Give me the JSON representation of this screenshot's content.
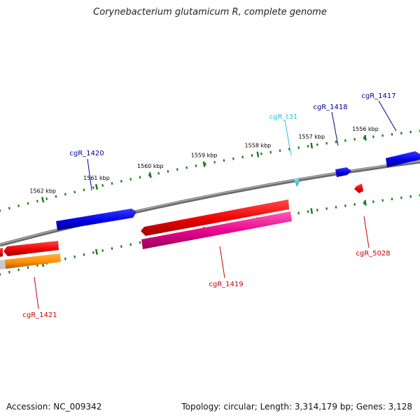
{
  "title": "Corynebacterium glutamicum R, complete genome",
  "footer": {
    "accession": "Accession: NC_009342",
    "summary": "Topology: circular; Length: 3,314,179 bp; Genes: 3,128"
  },
  "scale": {
    "ticks_kbp": [
      {
        "label": "1556 kbp"
      },
      {
        "label": "1557 kbp"
      },
      {
        "label": "1558 kbp"
      },
      {
        "label": "1559 kbp"
      },
      {
        "label": "1560 kbp"
      },
      {
        "label": "1561 kbp"
      },
      {
        "label": "1562 kbp"
      }
    ]
  },
  "features": [
    {
      "name": "cgR_1417",
      "strand": "forward",
      "type": "CDS",
      "color": "#0000ee"
    },
    {
      "name": "cgR_1418",
      "strand": "forward",
      "type": "CDS",
      "color": "#0000ee"
    },
    {
      "name": "cgR_t31",
      "strand": "forward",
      "type": "tRNA",
      "color": "#33ccee"
    },
    {
      "name": "cgR_1420",
      "strand": "forward",
      "type": "CDS",
      "color": "#0000ee"
    },
    {
      "name": "cgR_1419",
      "strand": "reverse",
      "type": "CDS",
      "color": "#ee0000"
    },
    {
      "name": "cgR_5028",
      "strand": "reverse",
      "type": "CDS",
      "color": "#ee0000"
    },
    {
      "name": "cgR_1421",
      "strand": "reverse",
      "type": "CDS",
      "color": "#ee0000"
    }
  ],
  "label_colors": {
    "forward_cds": "#000099",
    "reverse_cds": "#cc0000",
    "trna": "#33bbdd",
    "tick": "#1e7d1e",
    "backbone": "#808080"
  }
}
